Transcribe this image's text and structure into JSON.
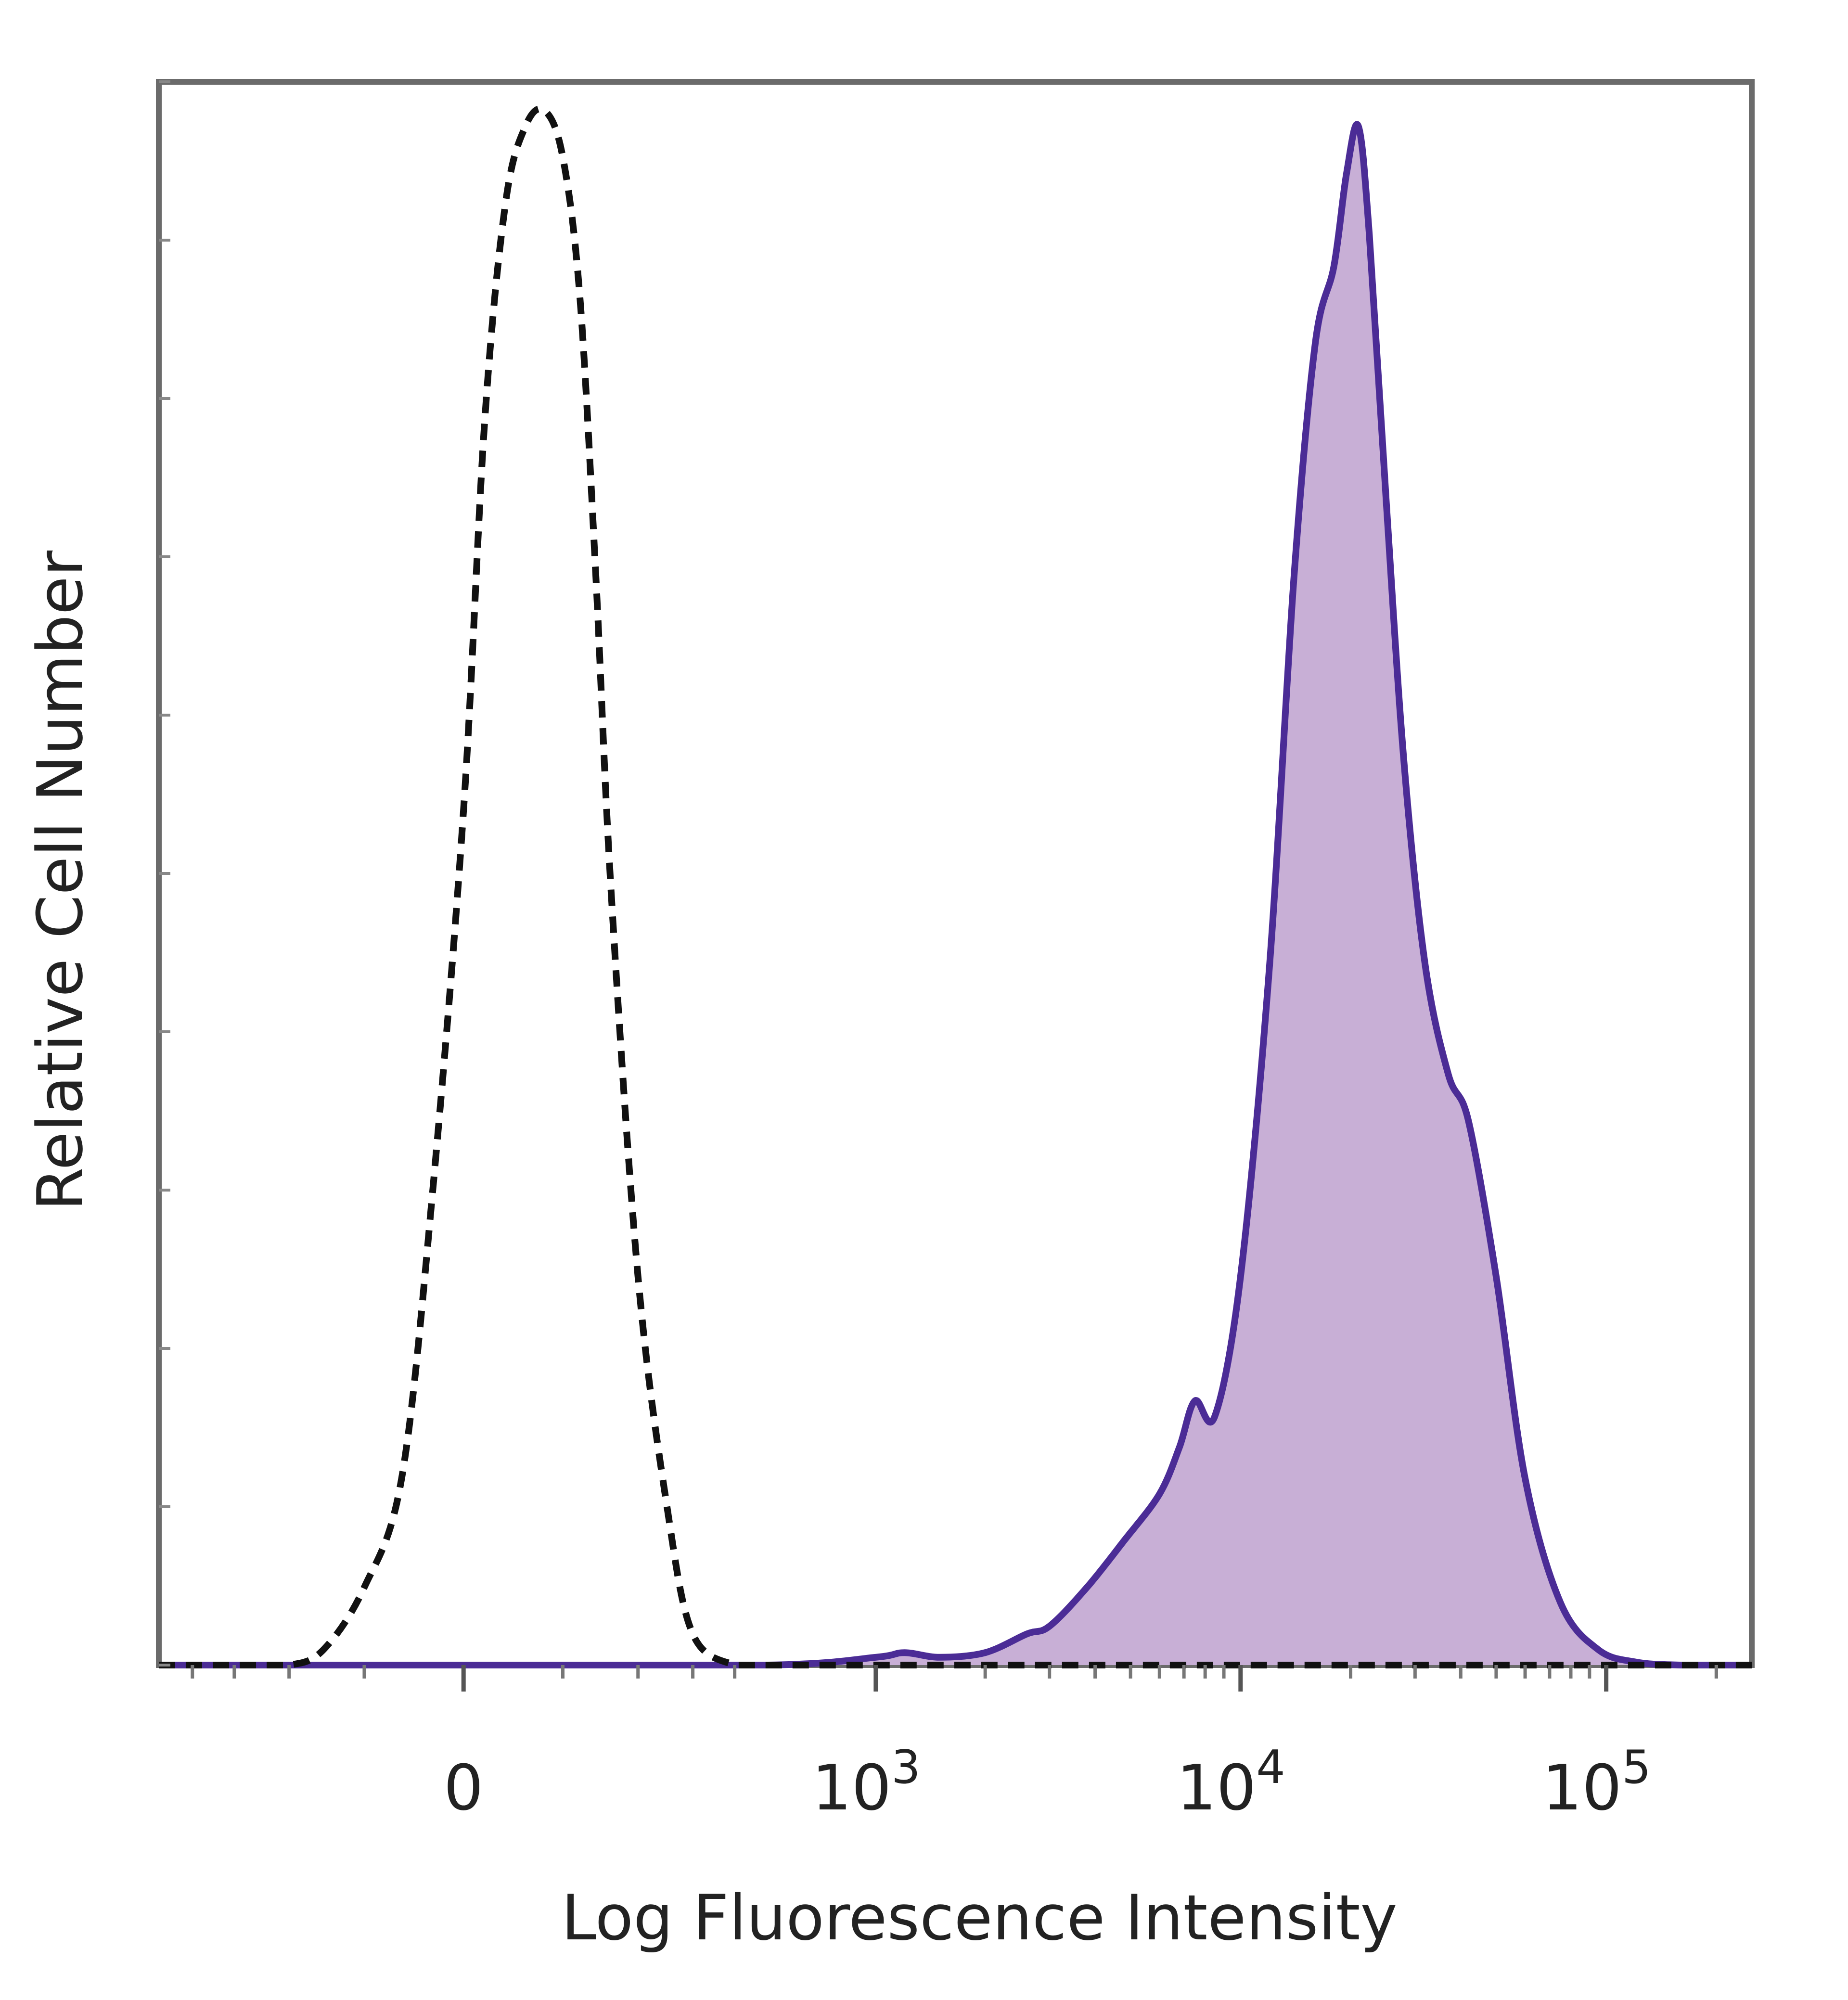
{
  "chart_data": {
    "type": "histogram",
    "title": "",
    "xlabel": "Log Fluorescence Intensity",
    "ylabel": "Relative Cell Number",
    "x_scale": "biexponential",
    "x_tick_labels": [
      {
        "value": 0,
        "base": "0",
        "exp": ""
      },
      {
        "value": 1000,
        "base": "10",
        "exp": "3"
      },
      {
        "value": 10000,
        "base": "10",
        "exp": "4"
      },
      {
        "value": 100000,
        "base": "10",
        "exp": "5"
      }
    ],
    "xlim": [
      -500,
      250000
    ],
    "ylim": [
      0,
      100
    ],
    "grid": false,
    "legend": "none",
    "series": [
      {
        "style": "dashed",
        "color": "#111111",
        "fill": "none",
        "x": [
          -500,
          -300,
          -200,
          -150,
          -100,
          -60,
          -30,
          0,
          20,
          40,
          60,
          80,
          100,
          120,
          140,
          160,
          200,
          250,
          300,
          400,
          500,
          1000,
          10000,
          100000,
          250000
        ],
        "y": [
          0,
          0,
          0,
          1,
          5,
          12,
          30,
          55,
          80,
          94,
          99,
          100,
          97,
          88,
          70,
          50,
          25,
          10,
          2,
          0,
          0,
          0,
          0,
          0,
          0
        ]
      },
      {
        "style": "solid",
        "color": "#4b2c96",
        "fill": "#c8afd6",
        "x": [
          -500,
          0,
          500,
          1000,
          1200,
          1500,
          2000,
          2600,
          3000,
          3800,
          4800,
          6000,
          6800,
          7500,
          8500,
          10000,
          12000,
          14000,
          16000,
          18000,
          19500,
          21000,
          22500,
          25000,
          28000,
          32000,
          37000,
          42000,
          50000,
          60000,
          75000,
          95000,
          120000,
          160000,
          250000
        ],
        "y": [
          0,
          0,
          0,
          0.5,
          0.8,
          0.5,
          0.8,
          2,
          2.5,
          5,
          8,
          11,
          14,
          17,
          16,
          25,
          45,
          70,
          85,
          90,
          96,
          99,
          92,
          75,
          58,
          45,
          38,
          35,
          25,
          12,
          4,
          1,
          0.2,
          0,
          0
        ]
      }
    ]
  }
}
